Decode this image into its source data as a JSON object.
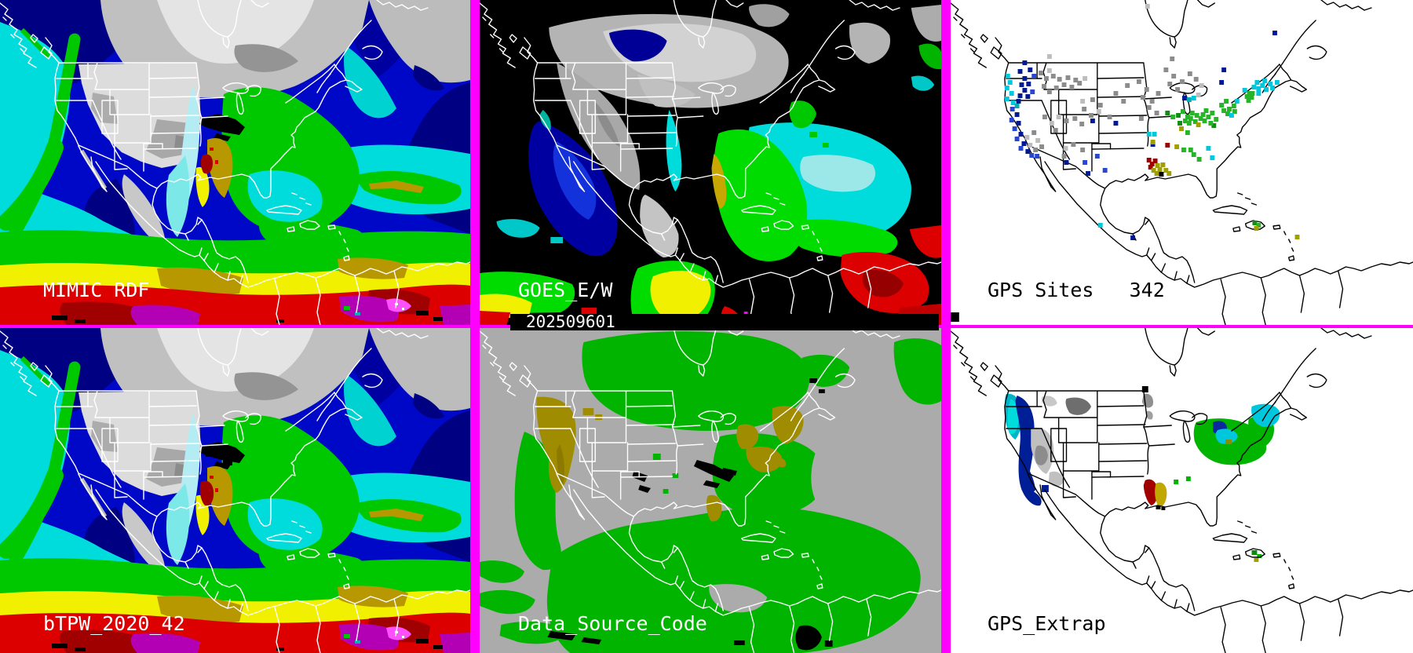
{
  "panels": {
    "mimic": {
      "label": "MIMIC RDF"
    },
    "goes": {
      "label": "GOES_E/W",
      "timestamp": "202509601"
    },
    "gps_sites": {
      "label": "GPS Sites",
      "count": "342"
    },
    "btpw": {
      "label": "bTPW_2020_42"
    },
    "data_source_code": {
      "label": "Data_Source_Code"
    },
    "gps_extrap": {
      "label": "GPS_Extrap"
    }
  },
  "colors": {
    "frame": "#FF00FF",
    "label_light": "#FFFFFF",
    "label_dark": "#000000",
    "tpw_palette": [
      "#000082",
      "#0008C8",
      "#00DCDC",
      "#00C800",
      "#F0F000",
      "#B89800",
      "#DC0000",
      "#A00000",
      "#B400B4",
      "#FF50FF"
    ],
    "dsc": {
      "background": "#ABABAB",
      "satellite_green": "#00B400",
      "gps_olive": "#A08C00",
      "no_data": "#000000"
    },
    "gps_dot_palette": {
      "n": "#001A96",
      "b": "#2846D2",
      "c": "#00C8DC",
      "t": "#00AAB4",
      "g1": "#6A6A6A",
      "g2": "#8C8C8C",
      "g3": "#BDBDBD",
      "G": "#28B428",
      "D": "#128C12",
      "o": "#A0A000",
      "r": "#A00000",
      "k": "#000000"
    }
  },
  "gps_dots": [
    [
      74,
      97,
      "c"
    ],
    [
      77,
      105,
      "c"
    ],
    [
      73,
      112,
      "c"
    ],
    [
      79,
      119,
      "c"
    ],
    [
      73,
      126,
      "c"
    ],
    [
      81,
      131,
      "c"
    ],
    [
      86,
      135,
      "t"
    ],
    [
      96,
      80,
      "n"
    ],
    [
      90,
      91,
      "n"
    ],
    [
      103,
      89,
      "n"
    ],
    [
      96,
      100,
      "n"
    ],
    [
      92,
      108,
      "n"
    ],
    [
      101,
      107,
      "n"
    ],
    [
      96,
      115,
      "n"
    ],
    [
      90,
      122,
      "n"
    ],
    [
      100,
      123,
      "n"
    ],
    [
      88,
      129,
      "n"
    ],
    [
      108,
      97,
      "b"
    ],
    [
      106,
      117,
      "b"
    ],
    [
      117,
      93,
      "g2"
    ],
    [
      124,
      100,
      "g2"
    ],
    [
      133,
      97,
      "g2"
    ],
    [
      141,
      101,
      "g2"
    ],
    [
      152,
      99,
      "g2"
    ],
    [
      162,
      102,
      "g2"
    ],
    [
      147,
      108,
      "g2"
    ],
    [
      157,
      111,
      "g2"
    ],
    [
      167,
      106,
      "g2"
    ],
    [
      137,
      112,
      "g2"
    ],
    [
      121,
      110,
      "g2"
    ],
    [
      128,
      117,
      "g2"
    ],
    [
      128,
      90,
      "g3"
    ],
    [
      174,
      100,
      "g3"
    ],
    [
      128,
      72,
      "g3"
    ],
    [
      80,
      139,
      "b"
    ],
    [
      79,
      153,
      "b"
    ],
    [
      83,
      164,
      "b"
    ],
    [
      86,
      177,
      "b"
    ],
    [
      91,
      189,
      "b"
    ],
    [
      105,
      198,
      "b"
    ],
    [
      112,
      199,
      "b"
    ],
    [
      86,
      146,
      "n"
    ],
    [
      88,
      157,
      "n"
    ],
    [
      91,
      171,
      "n"
    ],
    [
      95,
      183,
      "n"
    ],
    [
      100,
      193,
      "n"
    ],
    [
      110,
      191,
      "g2"
    ],
    [
      108,
      169,
      "g2"
    ],
    [
      118,
      187,
      "g2"
    ],
    [
      103,
      185,
      "g3"
    ],
    [
      99,
      175,
      "g3"
    ],
    [
      113,
      179,
      "g3"
    ],
    [
      122,
      149,
      "g2"
    ],
    [
      150,
      154,
      "g2"
    ],
    [
      161,
      151,
      "g2"
    ],
    [
      170,
      158,
      "g2"
    ],
    [
      136,
      166,
      "g2"
    ],
    [
      159,
      184,
      "g2"
    ],
    [
      171,
      191,
      "g2"
    ],
    [
      147,
      199,
      "g2"
    ],
    [
      131,
      157,
      "g3"
    ],
    [
      140,
      149,
      "g3"
    ],
    [
      149,
      189,
      "g3"
    ],
    [
      184,
      154,
      "n"
    ],
    [
      150,
      207,
      "n"
    ],
    [
      178,
      221,
      "n"
    ],
    [
      174,
      207,
      "b"
    ],
    [
      190,
      199,
      "b"
    ],
    [
      200,
      217,
      "b"
    ],
    [
      171,
      129,
      "g3"
    ],
    [
      192,
      142,
      "g3"
    ],
    [
      184,
      127,
      "g2"
    ],
    [
      194,
      134,
      "g2"
    ],
    [
      173,
      139,
      "g2"
    ],
    [
      182,
      147,
      "g2"
    ],
    [
      206,
      149,
      "g2"
    ],
    [
      224,
      129,
      "g2"
    ],
    [
      214,
      119,
      "g2"
    ],
    [
      229,
      109,
      "g2"
    ],
    [
      244,
      104,
      "g2"
    ],
    [
      254,
      114,
      "g2"
    ],
    [
      249,
      124,
      "g2"
    ],
    [
      261,
      129,
      "g2"
    ],
    [
      269,
      119,
      "g2"
    ],
    [
      257,
      137,
      "g2"
    ],
    [
      267,
      144,
      "g2"
    ],
    [
      247,
      151,
      "g2"
    ],
    [
      214,
      157,
      "n"
    ],
    [
      262,
      184,
      "n"
    ],
    [
      255,
      8,
      "g3"
    ],
    [
      325,
      109,
      "g3"
    ],
    [
      321,
      121,
      "g3"
    ],
    [
      287,
      75,
      "g2"
    ],
    [
      279,
      89,
      "g2"
    ],
    [
      289,
      97,
      "g2"
    ],
    [
      284,
      107,
      "g2"
    ],
    [
      294,
      114,
      "g2"
    ],
    [
      300,
      104,
      "g2"
    ],
    [
      310,
      94,
      "g2"
    ],
    [
      318,
      101,
      "g2"
    ],
    [
      303,
      125,
      "n"
    ],
    [
      309,
      127,
      "t"
    ],
    [
      315,
      125,
      "c"
    ],
    [
      354,
      89,
      "n"
    ],
    [
      351,
      105,
      "n"
    ],
    [
      420,
      42,
      "n"
    ],
    [
      281,
      144,
      "D"
    ],
    [
      295,
      147,
      "D"
    ],
    [
      297,
      157,
      "D"
    ],
    [
      341,
      160,
      "D"
    ],
    [
      288,
      149,
      "G"
    ],
    [
      301,
      142,
      "G"
    ],
    [
      307,
      149,
      "G"
    ],
    [
      313,
      144,
      "G"
    ],
    [
      311,
      151,
      "G"
    ],
    [
      319,
      147,
      "G"
    ],
    [
      317,
      155,
      "G"
    ],
    [
      324,
      151,
      "G"
    ],
    [
      329,
      154,
      "G"
    ],
    [
      327,
      146,
      "G"
    ],
    [
      334,
      149,
      "G"
    ],
    [
      339,
      144,
      "G"
    ],
    [
      337,
      157,
      "G"
    ],
    [
      344,
      152,
      "G"
    ],
    [
      331,
      141,
      "G"
    ],
    [
      309,
      157,
      "G"
    ],
    [
      304,
      154,
      "G"
    ],
    [
      321,
      159,
      "o"
    ],
    [
      299,
      164,
      "o"
    ],
    [
      307,
      169,
      "G"
    ],
    [
      351,
      134,
      "G"
    ],
    [
      357,
      129,
      "G"
    ],
    [
      361,
      139,
      "G"
    ],
    [
      367,
      135,
      "G"
    ],
    [
      359,
      145,
      "G"
    ],
    [
      354,
      141,
      "G"
    ],
    [
      368,
      142,
      "G"
    ],
    [
      364,
      147,
      "c"
    ],
    [
      371,
      129,
      "c"
    ],
    [
      381,
      115,
      "c"
    ],
    [
      393,
      111,
      "c"
    ],
    [
      397,
      105,
      "c"
    ],
    [
      399,
      113,
      "c"
    ],
    [
      404,
      109,
      "c"
    ],
    [
      409,
      114,
      "c"
    ],
    [
      399,
      119,
      "c"
    ],
    [
      407,
      103,
      "c"
    ],
    [
      414,
      107,
      "c"
    ],
    [
      417,
      112,
      "c"
    ],
    [
      423,
      105,
      "c"
    ],
    [
      384,
      123,
      "G"
    ],
    [
      387,
      119,
      "G"
    ],
    [
      390,
      124,
      "G"
    ],
    [
      386,
      128,
      "G"
    ],
    [
      391,
      119,
      "G"
    ],
    [
      257,
      171,
      "c"
    ],
    [
      264,
      171,
      "c"
    ],
    [
      334,
      189,
      "c"
    ],
    [
      339,
      201,
      "c"
    ],
    [
      262,
      181,
      "o"
    ],
    [
      293,
      187,
      "o"
    ],
    [
      281,
      185,
      "r"
    ],
    [
      302,
      191,
      "G"
    ],
    [
      311,
      191,
      "G"
    ],
    [
      315,
      197,
      "G"
    ],
    [
      322,
      203,
      "G"
    ],
    [
      257,
      204,
      "r"
    ],
    [
      261,
      209,
      "r"
    ],
    [
      265,
      205,
      "r"
    ],
    [
      259,
      213,
      "r"
    ],
    [
      263,
      217,
      "o"
    ],
    [
      268,
      211,
      "o"
    ],
    [
      271,
      216,
      "o"
    ],
    [
      275,
      210,
      "o"
    ],
    [
      267,
      221,
      "o"
    ],
    [
      279,
      217,
      "o"
    ],
    [
      283,
      221,
      "o"
    ],
    [
      273,
      222,
      "k"
    ],
    [
      194,
      287,
      "c"
    ],
    [
      236,
      303,
      "n"
    ],
    [
      394,
      284,
      "D"
    ],
    [
      399,
      287,
      "G"
    ],
    [
      396,
      291,
      "o"
    ],
    [
      449,
      302,
      "o"
    ]
  ]
}
